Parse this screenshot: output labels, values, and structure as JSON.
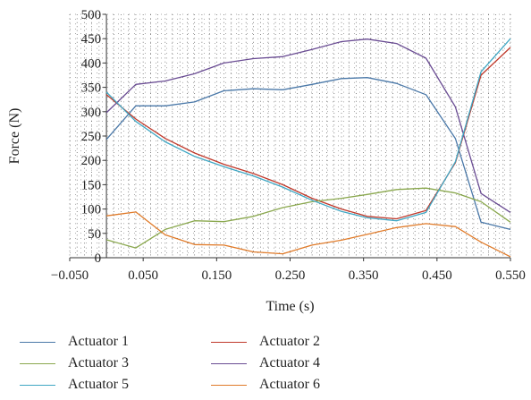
{
  "chart_data": {
    "type": "line",
    "title": "",
    "xlabel": "Time (s)",
    "ylabel": "Force (N)",
    "xlim": [
      -0.05,
      0.55
    ],
    "ylim": [
      0,
      500
    ],
    "xticks": [
      -0.05,
      0.05,
      0.15,
      0.25,
      0.35,
      0.45,
      0.55
    ],
    "xtick_labels": [
      "−0.050",
      "0.050",
      "0.150",
      "0.250",
      "0.350",
      "0.450",
      "0.550"
    ],
    "yticks": [
      0,
      50,
      100,
      150,
      200,
      250,
      300,
      350,
      400,
      450,
      500
    ],
    "ytick_labels": [
      "0",
      "50",
      "100",
      "150",
      "200",
      "250",
      "300",
      "350",
      "400",
      "450",
      "500"
    ],
    "grid": "dotted",
    "legend_position": "bottom",
    "x": [
      0,
      0.04,
      0.08,
      0.12,
      0.16,
      0.2,
      0.24,
      0.28,
      0.32,
      0.355,
      0.395,
      0.435,
      0.475,
      0.51,
      0.55
    ],
    "series": [
      {
        "name": "Actuator 1",
        "color": "#4a78a8",
        "values": [
          243,
          312,
          312,
          320,
          343,
          347,
          345,
          356,
          368,
          370,
          358,
          335,
          245,
          73,
          58
        ]
      },
      {
        "name": "Actuator 2",
        "color": "#c0392b",
        "values": [
          335,
          285,
          245,
          215,
          192,
          173,
          150,
          122,
          100,
          85,
          80,
          97,
          195,
          375,
          432
        ]
      },
      {
        "name": "Actuator 3",
        "color": "#8aa84e",
        "values": [
          37,
          20,
          58,
          76,
          74,
          85,
          103,
          115,
          122,
          130,
          140,
          143,
          133,
          115,
          73
        ]
      },
      {
        "name": "Actuator 4",
        "color": "#6a4c93",
        "values": [
          298,
          356,
          363,
          378,
          400,
          409,
          413,
          428,
          444,
          449,
          440,
          410,
          310,
          132,
          93
        ]
      },
      {
        "name": "Actuator 5",
        "color": "#3fa7c4",
        "values": [
          340,
          280,
          238,
          208,
          187,
          168,
          145,
          118,
          95,
          82,
          76,
          93,
          197,
          382,
          450
        ]
      },
      {
        "name": "Actuator 6",
        "color": "#e07b2a",
        "values": [
          86,
          94,
          47,
          27,
          26,
          12,
          8,
          26,
          36,
          48,
          62,
          70,
          64,
          32,
          2
        ]
      }
    ]
  }
}
